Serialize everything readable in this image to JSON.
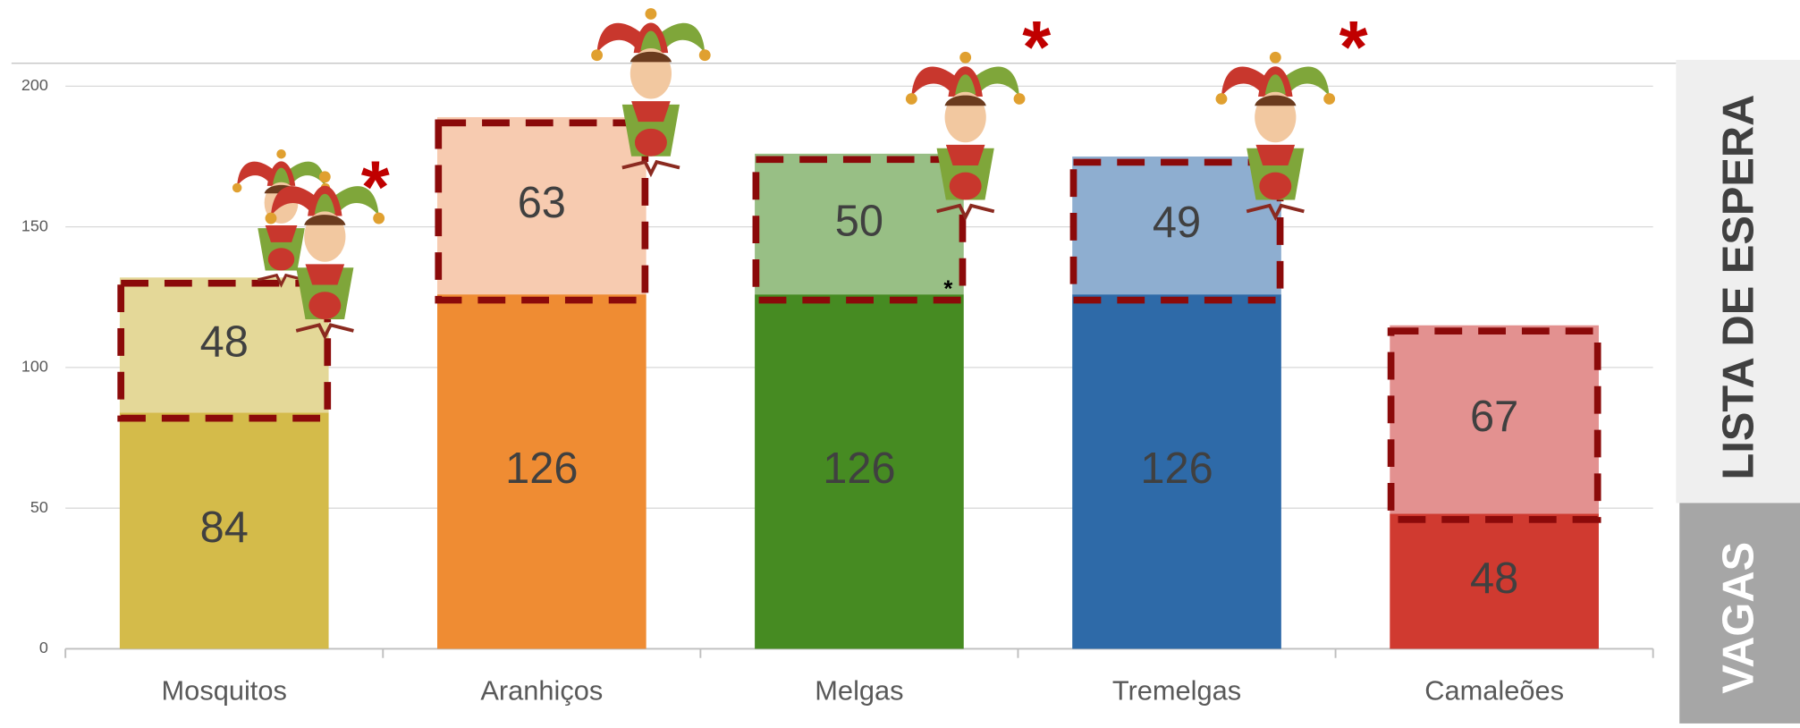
{
  "chart_data": {
    "type": "stacked-bar",
    "categories": [
      "Mosquitos",
      "Aranhiços",
      "Melgas",
      "Tremelgas",
      "Camaleões"
    ],
    "series": [
      {
        "name": "VAGAS",
        "colors": [
          "#d4bb4a",
          "#ef8c33",
          "#468b22",
          "#2e6aa8",
          "#d03a30"
        ],
        "values": [
          84,
          126,
          126,
          126,
          48
        ]
      },
      {
        "name": "LISTA DE ESPERA",
        "colors": [
          "#e4d898",
          "#f7cbb0",
          "#98bf85",
          "#8eaed0",
          "#e39190"
        ],
        "values": [
          48,
          63,
          50,
          49,
          67
        ]
      }
    ],
    "ylim": [
      0,
      200
    ],
    "yticks": [
      0,
      50,
      100,
      150,
      200
    ],
    "grid": true,
    "annotations": [
      "*",
      "*",
      "*",
      "*"
    ]
  }
}
